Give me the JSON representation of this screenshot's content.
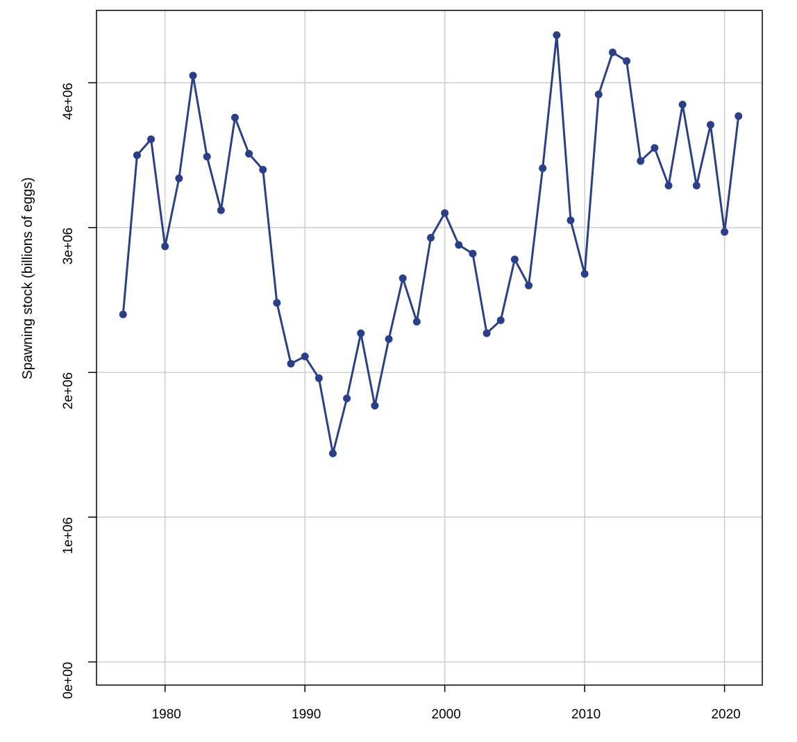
{
  "chart_data": {
    "type": "line",
    "title": "",
    "xlabel": "",
    "ylabel": "Spawning stock (billions of eggs)",
    "x_ticks": [
      1980,
      1990,
      2000,
      2010,
      2020
    ],
    "x_tick_labels": [
      "1980",
      "1990",
      "2000",
      "2010",
      "2020"
    ],
    "y_ticks": [
      0,
      1000000,
      2000000,
      3000000,
      4000000
    ],
    "y_tick_labels": [
      "0e+00",
      "1e+06",
      "2e+06",
      "3e+06",
      "4e+06"
    ],
    "xlim": [
      1975.1,
      2022.7
    ],
    "ylim": [
      -160000,
      4500000
    ],
    "grid": true,
    "line_color": "#2b3f88",
    "grid_color": "#cccccc",
    "series": [
      {
        "x": [
          1977,
          1978,
          1979,
          1980,
          1981,
          1982,
          1983,
          1984,
          1985,
          1986,
          1987,
          1988,
          1989,
          1990,
          1991,
          1992,
          1993,
          1994,
          1995,
          1996,
          1997,
          1998,
          1999,
          2000,
          2001,
          2002,
          2003,
          2004,
          2005,
          2006,
          2007,
          2008,
          2009,
          2010,
          2011,
          2012,
          2013,
          2014,
          2015,
          2016,
          2017,
          2018,
          2019,
          2020,
          2021
        ],
        "values": [
          2400000,
          3500000,
          3610000,
          2870000,
          3340000,
          4050000,
          3490000,
          3120000,
          3760000,
          3510000,
          3400000,
          2480000,
          2060000,
          2110000,
          1960000,
          1440000,
          1820000,
          2270000,
          1770000,
          2230000,
          2650000,
          2350000,
          2930000,
          3100000,
          2880000,
          2820000,
          2270000,
          2360000,
          2780000,
          2600000,
          3410000,
          4330000,
          3050000,
          2680000,
          3920000,
          4210000,
          4150000,
          3460000,
          3550000,
          3290000,
          3850000,
          3290000,
          3710000,
          2970000,
          3770000
        ]
      }
    ]
  }
}
